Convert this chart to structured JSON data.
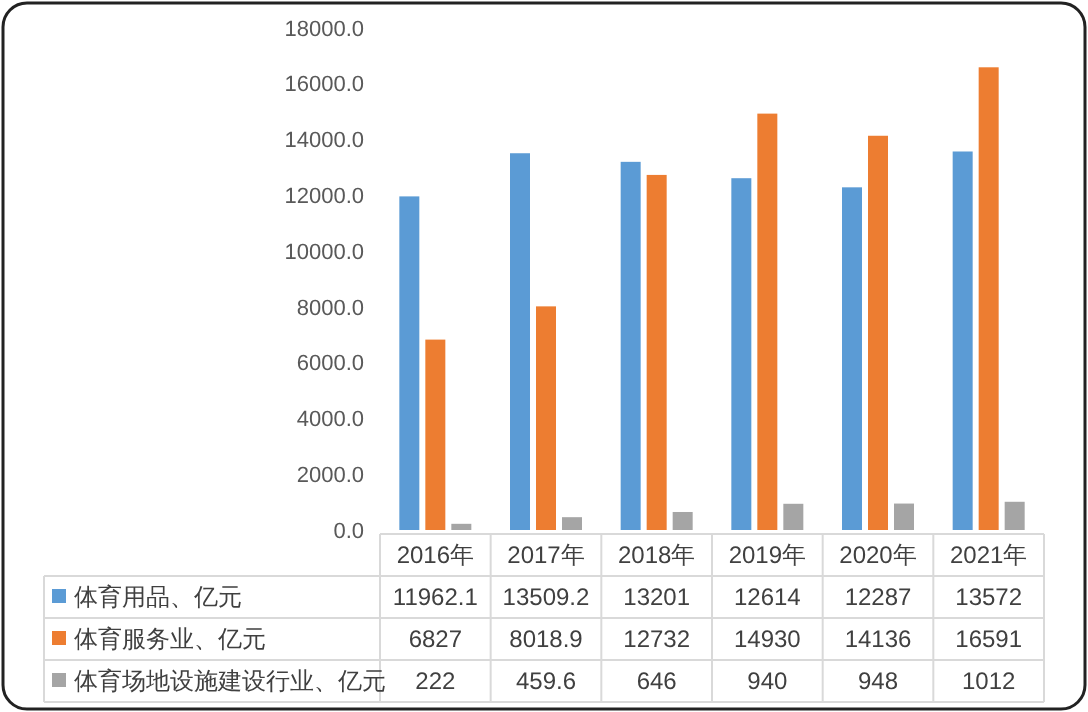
{
  "chart_data": {
    "type": "bar",
    "categories": [
      "2016年",
      "2017年",
      "2018年",
      "2019年",
      "2020年",
      "2021年"
    ],
    "series": [
      {
        "name": "体育用品、亿元",
        "color": "#5b9bd5",
        "values": [
          11962.1,
          13509.2,
          13201,
          12614,
          12287,
          13572
        ]
      },
      {
        "name": "体育服务业、亿元",
        "color": "#ed7d31",
        "values": [
          6827,
          8018.9,
          12732,
          14930,
          14136,
          16591
        ]
      },
      {
        "name": "体育场地设施建设行业、亿元",
        "color": "#a5a5a5",
        "values": [
          222,
          459.6,
          646,
          940,
          948,
          1012
        ]
      }
    ],
    "ylim": [
      0,
      18000
    ],
    "yticks": [
      {
        "value": 0,
        "label": "0.0"
      },
      {
        "value": 2000,
        "label": "2000.0"
      },
      {
        "value": 4000,
        "label": "4000.0"
      },
      {
        "value": 6000,
        "label": "6000.0"
      },
      {
        "value": 8000,
        "label": "8000.0"
      },
      {
        "value": 10000,
        "label": "10000.0"
      },
      {
        "value": 12000,
        "label": "12000.0"
      },
      {
        "value": 14000,
        "label": "14000.0"
      },
      {
        "value": 16000,
        "label": "16000.0"
      },
      {
        "value": 18000,
        "label": "18000.0"
      }
    ],
    "data_labels": true,
    "legend": "bottom",
    "grid": false
  }
}
